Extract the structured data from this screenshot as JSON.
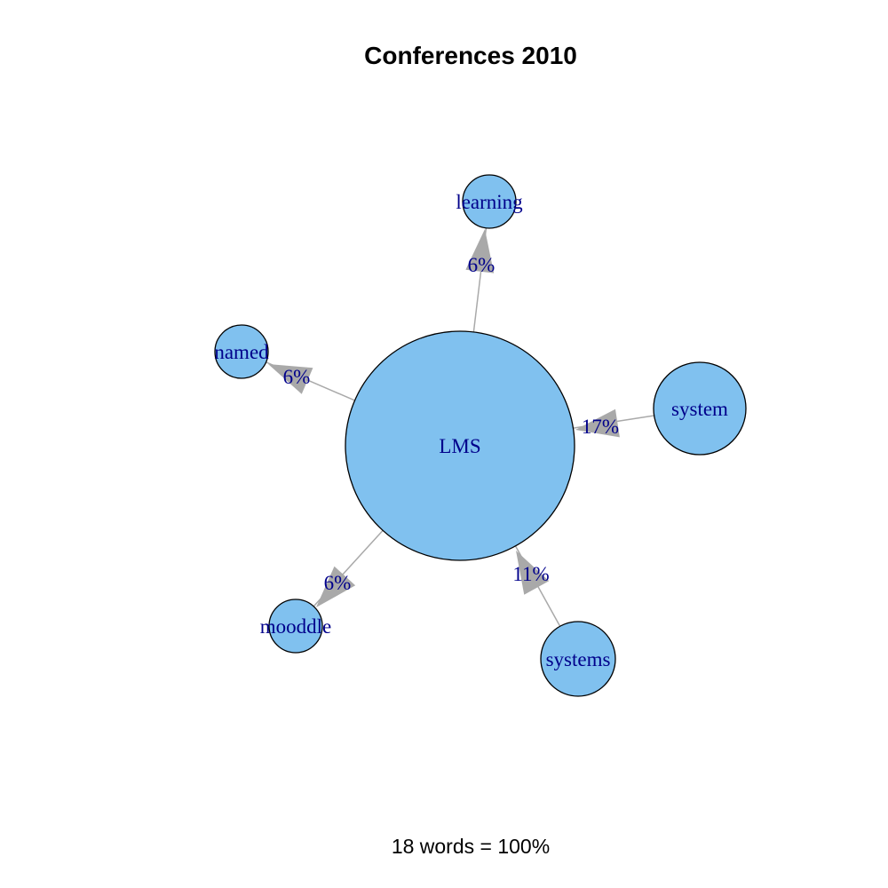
{
  "title": "Conferences 2010",
  "footer": "18 words = 100%",
  "colors": {
    "node_fill": "#80c1ef",
    "node_stroke": "#000000",
    "edge": "#a9a9a9",
    "label": "#00008b"
  },
  "nodes": [
    {
      "id": "lms",
      "label": "LMS"
    },
    {
      "id": "learning",
      "label": "learning"
    },
    {
      "id": "named",
      "label": "named"
    },
    {
      "id": "system",
      "label": "system"
    },
    {
      "id": "mooddle",
      "label": "mooddle"
    },
    {
      "id": "systems",
      "label": "systems"
    }
  ],
  "edges": [
    {
      "from": "lms",
      "to": "learning",
      "label": "6%"
    },
    {
      "from": "lms",
      "to": "named",
      "label": "6%"
    },
    {
      "from": "system",
      "to": "lms",
      "label": "17%"
    },
    {
      "from": "lms",
      "to": "mooddle",
      "label": "6%"
    },
    {
      "from": "systems",
      "to": "lms",
      "label": "11%"
    }
  ]
}
